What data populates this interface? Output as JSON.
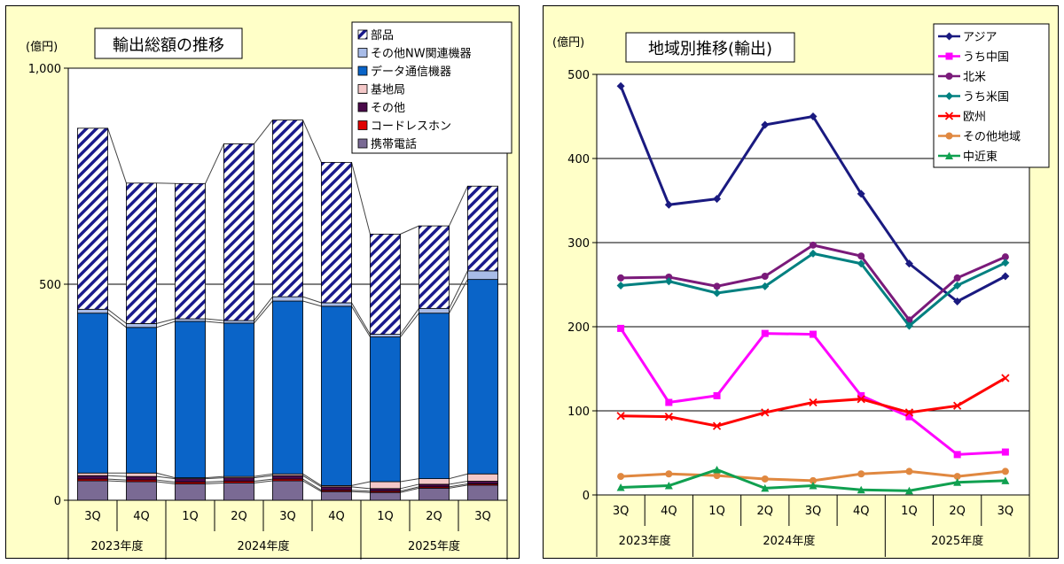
{
  "chart_data": [
    {
      "type": "bar",
      "stacked": true,
      "title": "輸出総額の推移",
      "ylabel": "(億円)",
      "ylim": [
        0,
        1000
      ],
      "yticks": [
        "0",
        "500",
        "1,000"
      ],
      "yticks_values": [
        0,
        500,
        1000
      ],
      "categories": [
        "3Q",
        "4Q",
        "1Q",
        "2Q",
        "3Q",
        "4Q",
        "1Q",
        "2Q",
        "3Q"
      ],
      "fiscal_years": [
        {
          "label": "2023年度",
          "count": 2
        },
        {
          "label": "2024年度",
          "count": 4
        },
        {
          "label": "2025年度",
          "count": 3
        }
      ],
      "legend_position": "top-right",
      "series": [
        {
          "name": "携帯電話",
          "color": "#7a6a94",
          "values": [
            45,
            43,
            38,
            40,
            45,
            20,
            18,
            28,
            35
          ]
        },
        {
          "name": "コードレスホン",
          "color": "#e00000",
          "values": [
            4,
            4,
            4,
            4,
            4,
            3,
            3,
            3,
            3
          ]
        },
        {
          "name": "その他",
          "color": "#4a0a4a",
          "values": [
            8,
            8,
            8,
            8,
            8,
            8,
            6,
            6,
            6
          ]
        },
        {
          "name": "基地局",
          "color": "#f4c8c8",
          "values": [
            6,
            8,
            2,
            3,
            4,
            3,
            16,
            13,
            17
          ]
        },
        {
          "name": "データ通信機器",
          "color": "#0a64c8",
          "values": [
            370,
            337,
            362,
            355,
            400,
            415,
            335,
            383,
            450
          ]
        },
        {
          "name": "その他NW関連機器",
          "color": "#a8bce8",
          "values": [
            9,
            9,
            6,
            6,
            10,
            8,
            6,
            11,
            20
          ]
        },
        {
          "name": "部品",
          "color": "#1a1a8c",
          "pattern": "hatched",
          "values": [
            419,
            325,
            313,
            409,
            409,
            325,
            232,
            191,
            196
          ]
        }
      ]
    },
    {
      "type": "line",
      "title": "地域別推移(輸出)",
      "ylabel": "(億円)",
      "ylim": [
        0,
        500
      ],
      "yticks": [
        "0",
        "100",
        "200",
        "300",
        "400",
        "500"
      ],
      "yticks_values": [
        0,
        100,
        200,
        300,
        400,
        500
      ],
      "categories": [
        "3Q",
        "4Q",
        "1Q",
        "2Q",
        "3Q",
        "4Q",
        "1Q",
        "2Q",
        "3Q"
      ],
      "fiscal_years": [
        {
          "label": "2023年度",
          "count": 2
        },
        {
          "label": "2024年度",
          "count": 4
        },
        {
          "label": "2025年度",
          "count": 3
        }
      ],
      "legend_position": "top-right",
      "series": [
        {
          "name": "アジア",
          "color": "#1a1a80",
          "marker": "diamond",
          "values": [
            486,
            345,
            352,
            440,
            450,
            358,
            275,
            230,
            260
          ]
        },
        {
          "name": "うち中国",
          "color": "#ff00ff",
          "marker": "square",
          "values": [
            198,
            110,
            118,
            192,
            191,
            118,
            93,
            48,
            51
          ]
        },
        {
          "name": "北米",
          "color": "#7a1a7a",
          "marker": "circle",
          "values": [
            258,
            259,
            248,
            260,
            297,
            284,
            208,
            258,
            283
          ]
        },
        {
          "name": "うち米国",
          "color": "#008080",
          "marker": "diamond",
          "values": [
            249,
            254,
            240,
            248,
            287,
            275,
            201,
            249,
            276
          ]
        },
        {
          "name": "欧州",
          "color": "#ff0000",
          "marker": "x",
          "values": [
            94,
            93,
            82,
            98,
            110,
            114,
            98,
            106,
            139
          ]
        },
        {
          "name": "その他地域",
          "color": "#e08840",
          "marker": "circle",
          "values": [
            22,
            25,
            23,
            19,
            17,
            25,
            28,
            22,
            28
          ]
        },
        {
          "name": "中近東",
          "color": "#10a050",
          "marker": "triangle",
          "values": [
            9,
            11,
            30,
            8,
            11,
            6,
            5,
            15,
            17
          ]
        }
      ]
    }
  ]
}
